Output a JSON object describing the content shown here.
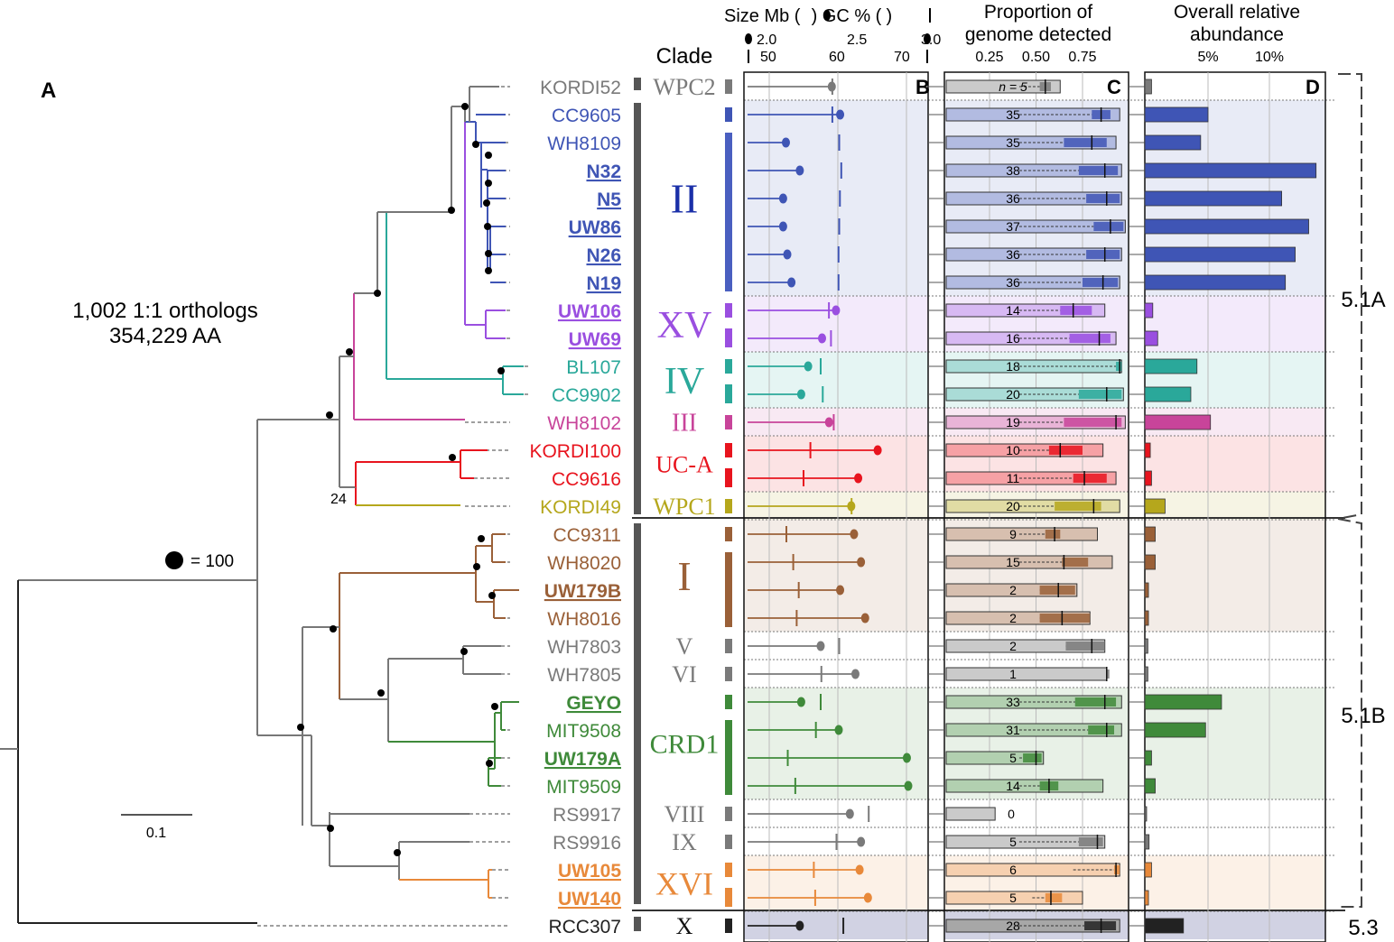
{
  "panel_labels": {
    "A": "A",
    "B": "B",
    "C": "C",
    "D": "D"
  },
  "tree": {
    "ortholog_line1": "1,002 1:1 orthologs",
    "ortholog_line2": "354,229 AA",
    "bootstrap_legend": "= 100",
    "bootstrap_label": "24",
    "scale_bar": "0.1"
  },
  "headers": {
    "clade": "Clade",
    "size_title": "Size Mb (",
    "gc_title": ") GC % (",
    "gc_close": ")",
    "size_ticks": [
      "2.0",
      "2.5",
      "3.0"
    ],
    "gc_ticks": [
      "50",
      "60",
      "70"
    ],
    "proportion_line1": "Proportion of",
    "proportion_line2": "genome detected",
    "proportion_ticks": [
      "0.25",
      "0.50",
      "0.75"
    ],
    "abundance_line1": "Overall relative",
    "abundance_line2": "abundance",
    "abundance_ticks": [
      "5%",
      "10%"
    ]
  },
  "subclusters": [
    "5.1A",
    "5.1B",
    "5.3"
  ],
  "colors": {
    "WPC2": "#7a7a7a",
    "II": "#3f55b5",
    "XV": "#9a4fe0",
    "IV": "#2aa89a",
    "III": "#c8449a",
    "UCA": "#e8141e",
    "WPC1": "#b5a71c",
    "I": "#9a6038",
    "V": "#7a7a7a",
    "CRD1": "#3f8a3a",
    "XVI": "#e8893a",
    "X": "#333333"
  },
  "clades": [
    {
      "name": "WPC2",
      "color": "#7a7a7a",
      "size": 26
    },
    {
      "name": "II",
      "color": "#1a2fa8",
      "size": 46
    },
    {
      "name": "XV",
      "color": "#9a4fe0",
      "size": 42
    },
    {
      "name": "IV",
      "color": "#2aa89a",
      "size": 42
    },
    {
      "name": "III",
      "color": "#c8449a",
      "size": 28
    },
    {
      "name": "UC-A",
      "color": "#e8141e",
      "size": 26
    },
    {
      "name": "WPC1",
      "color": "#b5a71c",
      "size": 26
    },
    {
      "name": "I",
      "color": "#9a6038",
      "size": 46
    },
    {
      "name": "V",
      "color": "#7a7a7a",
      "size": 26
    },
    {
      "name": "VI",
      "color": "#7a7a7a",
      "size": 26
    },
    {
      "name": "CRD1",
      "color": "#3f8a3a",
      "size": 30
    },
    {
      "name": "VIII",
      "color": "#7a7a7a",
      "size": 26
    },
    {
      "name": "IX",
      "color": "#7a7a7a",
      "size": 26
    },
    {
      "name": "XVI",
      "color": "#e8893a",
      "size": 36
    },
    {
      "name": "X",
      "color": "#111111",
      "size": 26
    }
  ],
  "strains": [
    {
      "name": "KORDI52",
      "color": "#7a7a7a",
      "bold": false,
      "size_mb": 2.45,
      "gc": 59.2,
      "detect_n": "n = 5",
      "prop_lo": 0.41,
      "prop_hi": 0.63,
      "box_lo": 0.52,
      "box_hi": 0.58,
      "median": 0.55,
      "abundance": 0.4
    },
    {
      "name": "CC9605",
      "color": "#3f55b5",
      "bold": false,
      "size_mb": 2.51,
      "gc": 59.2,
      "detect_n": "35",
      "prop_lo": 0.41,
      "prop_hi": 0.95,
      "box_lo": 0.8,
      "box_hi": 0.9,
      "median": 0.85,
      "abundance": 5.0
    },
    {
      "name": "WH8109",
      "color": "#3f55b5",
      "bold": false,
      "size_mb": 2.12,
      "gc": 60.2,
      "detect_n": "35",
      "prop_lo": 0.41,
      "prop_hi": 0.93,
      "box_lo": 0.65,
      "box_hi": 0.88,
      "median": 0.8,
      "abundance": 4.4
    },
    {
      "name": "N32",
      "color": "#3f55b5",
      "bold": true,
      "size_mb": 2.22,
      "gc": 60.5,
      "detect_n": "38",
      "prop_lo": 0.41,
      "prop_hi": 0.96,
      "box_lo": 0.73,
      "box_hi": 0.94,
      "median": 0.87,
      "abundance": 13.8
    },
    {
      "name": "N5",
      "color": "#3f55b5",
      "bold": true,
      "size_mb": 2.1,
      "gc": 60.3,
      "detect_n": "36",
      "prop_lo": 0.41,
      "prop_hi": 0.96,
      "box_lo": 0.77,
      "box_hi": 0.95,
      "median": 0.88,
      "abundance": 11.0
    },
    {
      "name": "UW86",
      "color": "#3f55b5",
      "bold": true,
      "size_mb": 2.1,
      "gc": 60.2,
      "detect_n": "37",
      "prop_lo": 0.41,
      "prop_hi": 0.98,
      "box_lo": 0.81,
      "box_hi": 0.97,
      "median": 0.9,
      "abundance": 13.2
    },
    {
      "name": "N26",
      "color": "#3f55b5",
      "bold": true,
      "size_mb": 2.13,
      "gc": 60.1,
      "detect_n": "36",
      "prop_lo": 0.41,
      "prop_hi": 0.96,
      "box_lo": 0.77,
      "box_hi": 0.95,
      "median": 0.87,
      "abundance": 12.1
    },
    {
      "name": "N19",
      "color": "#3f55b5",
      "bold": true,
      "size_mb": 2.16,
      "gc": 60.1,
      "detect_n": "36",
      "prop_lo": 0.41,
      "prop_hi": 0.95,
      "box_lo": 0.75,
      "box_hi": 0.94,
      "median": 0.86,
      "abundance": 11.3
    },
    {
      "name": "UW106",
      "color": "#9a4fe0",
      "bold": true,
      "size_mb": 2.48,
      "gc": 58.7,
      "detect_n": "14",
      "prop_lo": 0.41,
      "prop_hi": 0.87,
      "box_lo": 0.63,
      "box_hi": 0.8,
      "median": 0.7,
      "abundance": 0.5
    },
    {
      "name": "UW69",
      "color": "#9a4fe0",
      "bold": true,
      "size_mb": 2.38,
      "gc": 59.0,
      "detect_n": "16",
      "prop_lo": 0.41,
      "prop_hi": 0.93,
      "box_lo": 0.68,
      "box_hi": 0.9,
      "median": 0.84,
      "abundance": 0.9
    },
    {
      "name": "BL107",
      "color": "#2aa89a",
      "bold": false,
      "size_mb": 2.28,
      "gc": 57.5,
      "detect_n": "18",
      "prop_lo": 0.41,
      "prop_hi": 0.96,
      "box_lo": 0.93,
      "box_hi": 0.96,
      "median": 0.95,
      "abundance": 4.1
    },
    {
      "name": "CC9902",
      "color": "#2aa89a",
      "bold": false,
      "size_mb": 2.23,
      "gc": 57.8,
      "detect_n": "20",
      "prop_lo": 0.41,
      "prop_hi": 0.97,
      "box_lo": 0.73,
      "box_hi": 0.96,
      "median": 0.88,
      "abundance": 3.6
    },
    {
      "name": "WH8102",
      "color": "#c8449a",
      "bold": false,
      "size_mb": 2.43,
      "gc": 59.4,
      "detect_n": "19",
      "prop_lo": 0.41,
      "prop_hi": 0.98,
      "box_lo": 0.65,
      "box_hi": 0.96,
      "median": 0.93,
      "abundance": 5.2
    },
    {
      "name": "KORDI100",
      "color": "#e8141e",
      "bold": false,
      "size_mb": 2.78,
      "gc": 56.0,
      "detect_n": "10",
      "prop_lo": 0.41,
      "prop_hi": 0.86,
      "box_lo": 0.57,
      "box_hi": 0.75,
      "median": 0.63,
      "abundance": 0.3
    },
    {
      "name": "CC9616",
      "color": "#e8141e",
      "bold": false,
      "size_mb": 2.64,
      "gc": 55.0,
      "detect_n": "11",
      "prop_lo": 0.41,
      "prop_hi": 0.93,
      "box_lo": 0.7,
      "box_hi": 0.88,
      "median": 0.76,
      "abundance": 0.4
    },
    {
      "name": "KORDI49",
      "color": "#b5a71c",
      "bold": false,
      "size_mb": 2.59,
      "gc": 62.0,
      "detect_n": "20",
      "prop_lo": 0.41,
      "prop_hi": 0.95,
      "box_lo": 0.6,
      "box_hi": 0.85,
      "median": 0.81,
      "abundance": 1.5
    },
    {
      "name": "CC9311",
      "color": "#9a6038",
      "bold": false,
      "size_mb": 2.61,
      "gc": 52.5,
      "detect_n": "9",
      "prop_lo": 0.41,
      "prop_hi": 0.83,
      "box_lo": 0.55,
      "box_hi": 0.63,
      "median": 0.6,
      "abundance": 0.7
    },
    {
      "name": "WH8020",
      "color": "#9a6038",
      "bold": false,
      "size_mb": 2.66,
      "gc": 53.5,
      "detect_n": "15",
      "prop_lo": 0.41,
      "prop_hi": 0.91,
      "box_lo": 0.64,
      "box_hi": 0.78,
      "median": 0.65,
      "abundance": 0.7
    },
    {
      "name": "UW179B",
      "color": "#9a6038",
      "bold": true,
      "size_mb": 2.51,
      "gc": 54.3,
      "detect_n": "2",
      "prop_lo": 0.52,
      "prop_hi": 0.72,
      "box_lo": 0.52,
      "box_hi": 0.71,
      "median": 0.62,
      "abundance": 0.15
    },
    {
      "name": "WH8016",
      "color": "#9a6038",
      "bold": false,
      "size_mb": 2.69,
      "gc": 54.0,
      "detect_n": "2",
      "prop_lo": 0.52,
      "prop_hi": 0.79,
      "box_lo": 0.52,
      "box_hi": 0.79,
      "median": 0.64,
      "abundance": 0.15
    },
    {
      "name": "WH7803",
      "color": "#7a7a7a",
      "bold": false,
      "size_mb": 2.37,
      "gc": 60.2,
      "detect_n": "2",
      "prop_lo": 0.66,
      "prop_hi": 0.87,
      "box_lo": 0.66,
      "box_hi": 0.87,
      "median": 0.8,
      "abundance": 0.1
    },
    {
      "name": "WH7805",
      "color": "#7a7a7a",
      "bold": false,
      "size_mb": 2.62,
      "gc": 57.6,
      "detect_n": "1",
      "prop_lo": 0.88,
      "prop_hi": 0.88,
      "box_lo": 0.88,
      "box_hi": 0.88,
      "median": 0.88,
      "abundance": 0.1
    },
    {
      "name": "GEYO",
      "color": "#3f8a3a",
      "bold": true,
      "size_mb": 2.23,
      "gc": 57.5,
      "detect_n": "33",
      "prop_lo": 0.41,
      "prop_hi": 0.96,
      "box_lo": 0.71,
      "box_hi": 0.93,
      "median": 0.87,
      "abundance": 6.1
    },
    {
      "name": "MIT9508",
      "color": "#3f8a3a",
      "bold": false,
      "size_mb": 2.5,
      "gc": 56.8,
      "detect_n": "31",
      "prop_lo": 0.41,
      "prop_hi": 0.96,
      "box_lo": 0.78,
      "box_hi": 0.92,
      "median": 0.88,
      "abundance": 4.8
    },
    {
      "name": "UW179A",
      "color": "#3f8a3a",
      "bold": true,
      "size_mb": 2.99,
      "gc": 52.7,
      "detect_n": "5",
      "prop_lo": 0.41,
      "prop_hi": 0.54,
      "box_lo": 0.43,
      "box_hi": 0.53,
      "median": 0.5,
      "abundance": 0.4
    },
    {
      "name": "MIT9509",
      "color": "#3f8a3a",
      "bold": false,
      "size_mb": 3.0,
      "gc": 53.8,
      "detect_n": "14",
      "prop_lo": 0.41,
      "prop_hi": 0.86,
      "box_lo": 0.52,
      "box_hi": 0.62,
      "median": 0.57,
      "abundance": 0.7
    },
    {
      "name": "RS9917",
      "color": "#7a7a7a",
      "bold": false,
      "size_mb": 2.58,
      "gc": 64.5,
      "detect_n": "0",
      "prop_lo": 0.0,
      "prop_hi": 0.28,
      "box_lo": 0.0,
      "box_hi": 0.28,
      "median": 0.28,
      "abundance": 0.0
    },
    {
      "name": "RS9916",
      "color": "#7a7a7a",
      "bold": false,
      "size_mb": 2.66,
      "gc": 59.8,
      "detect_n": "5",
      "prop_lo": 0.41,
      "prop_hi": 0.87,
      "box_lo": 0.73,
      "box_hi": 0.86,
      "median": 0.83,
      "abundance": 0.2
    },
    {
      "name": "UW105",
      "color": "#e8893a",
      "bold": true,
      "size_mb": 2.65,
      "gc": 56.5,
      "detect_n": "6",
      "prop_lo": 0.7,
      "prop_hi": 0.95,
      "box_lo": 0.92,
      "box_hi": 0.95,
      "median": 0.93,
      "abundance": 0.4
    },
    {
      "name": "UW140",
      "color": "#e8893a",
      "bold": true,
      "size_mb": 2.71,
      "gc": 56.7,
      "detect_n": "5",
      "prop_lo": 0.48,
      "prop_hi": 0.75,
      "box_lo": 0.55,
      "box_hi": 0.64,
      "median": 0.58,
      "abundance": 0.15
    },
    {
      "name": "RCC307",
      "color": "#222222",
      "bold": false,
      "size_mb": 2.22,
      "gc": 60.8,
      "detect_n": "28",
      "prop_lo": 0.41,
      "prop_hi": 0.95,
      "box_lo": 0.76,
      "box_hi": 0.93,
      "median": 0.85,
      "abundance": 3.0
    }
  ]
}
